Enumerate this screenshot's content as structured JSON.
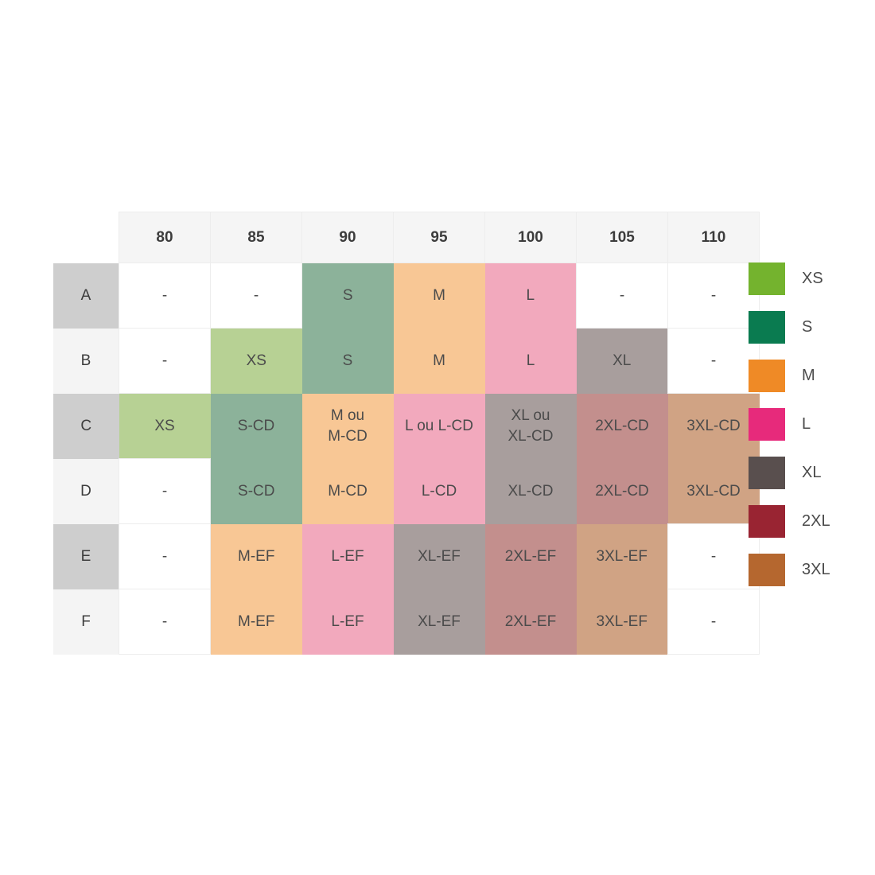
{
  "chart_data": {
    "type": "table",
    "title": "",
    "columns": [
      "80",
      "85",
      "90",
      "95",
      "100",
      "105",
      "110"
    ],
    "rows": [
      "A",
      "B",
      "C",
      "D",
      "E",
      "F"
    ],
    "values": [
      [
        "-",
        "-",
        "S",
        "M",
        "L",
        "-",
        "-"
      ],
      [
        "-",
        "XS",
        "S",
        "M",
        "L",
        "XL",
        "-"
      ],
      [
        "XS",
        "S-CD",
        "M ou\nM-CD",
        "L ou L-CD",
        "XL ou\nXL-CD",
        "2XL-CD",
        "3XL-CD"
      ],
      [
        "-",
        "S-CD",
        "M-CD",
        "L-CD",
        "XL-CD",
        "2XL-CD",
        "3XL-CD"
      ],
      [
        "-",
        "M-EF",
        "L-EF",
        "XL-EF",
        "2XL-EF",
        "3XL-EF",
        "-"
      ],
      [
        "-",
        "M-EF",
        "L-EF",
        "XL-EF",
        "2XL-EF",
        "3XL-EF",
        "-"
      ]
    ],
    "cell_size_keys": [
      [
        null,
        null,
        "S",
        "M",
        "L",
        null,
        null
      ],
      [
        null,
        "XS",
        "S",
        "M",
        "L",
        "XL",
        null
      ],
      [
        "XS",
        "S",
        "M",
        "L",
        "XL",
        "2XL",
        "3XL"
      ],
      [
        null,
        "S",
        "M",
        "L",
        "XL",
        "2XL",
        "3XL"
      ],
      [
        null,
        "M",
        "L",
        "XL",
        "2XL",
        "3XL",
        null
      ],
      [
        null,
        "M",
        "L",
        "XL",
        "2XL",
        "3XL",
        null
      ]
    ],
    "legend_position": "right",
    "grid": true
  },
  "legend": {
    "items": [
      {
        "label": "XS",
        "color": "#74b32e"
      },
      {
        "label": "S",
        "color": "#0a7b50"
      },
      {
        "label": "M",
        "color": "#ef8a26"
      },
      {
        "label": "L",
        "color": "#e72a7b"
      },
      {
        "label": "XL",
        "color": "#594f4e"
      },
      {
        "label": "2XL",
        "color": "#992432"
      },
      {
        "label": "3XL",
        "color": "#b5672f"
      }
    ]
  },
  "palette": {
    "cell_fills": {
      "XS": "#b7d194",
      "S": "#8cb29a",
      "M": "#f8c795",
      "L": "#f2a9bd",
      "XL": "#a89e9d",
      "2XL": "#c38f8d",
      "3XL": "#d0a384"
    },
    "header_bg": "#f5f5f5",
    "row_header_dark": "#cecece",
    "row_header_light": "#f4f4f4",
    "grid_line": "#ededed",
    "cell_text": "#4b4b4b",
    "header_text": "#3c3c3c",
    "background": "#ffffff"
  }
}
